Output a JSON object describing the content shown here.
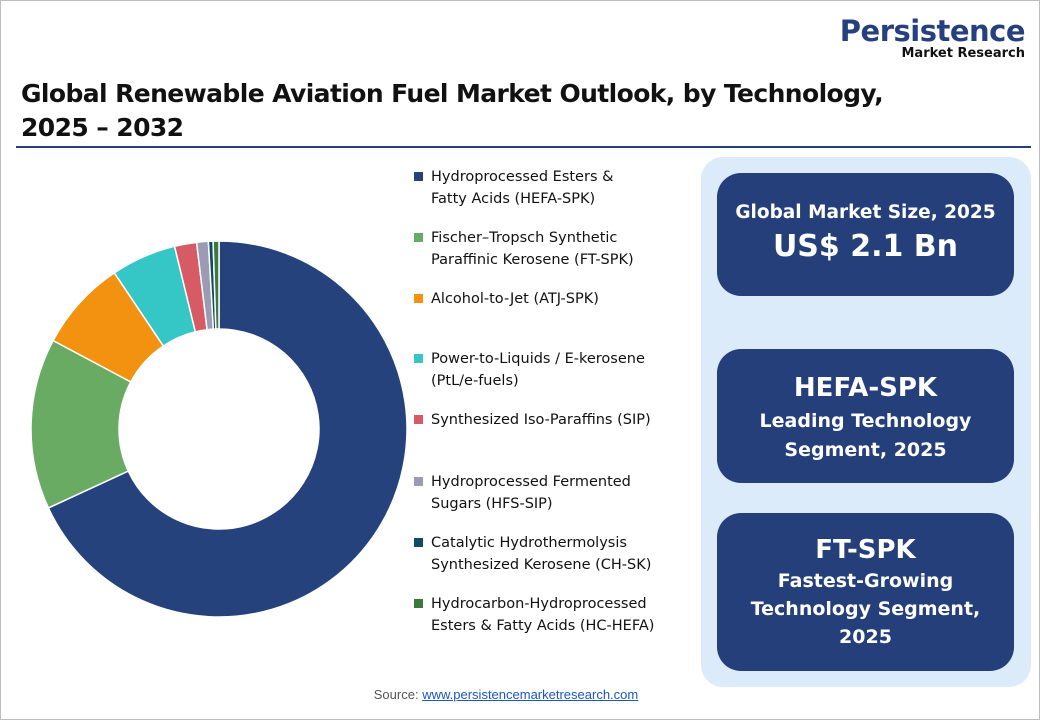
{
  "logo": {
    "line1": "Persistence",
    "line2": "Market Research"
  },
  "title": "Global Renewable Aviation Fuel Market Outlook, by Technology, 2025 – 2032",
  "title_line1": "Global Renewable Aviation Fuel Market Outlook, by Technology,",
  "title_line2": "2025 – 2032",
  "chart_data": {
    "type": "pie",
    "donut": true,
    "categories": [
      "Hydroprocessed Esters & Fatty Acids (HEFA-SPK)",
      "Fischer–Tropsch Synthetic Paraffinic Kerosene (FT-SPK)",
      "Alcohol-to-Jet (ATJ-SPK)",
      "Power-to-Liquids / E-kerosene (PtL/e-fuels)",
      "Synthesized Iso-Paraffins (SIP)",
      "Hydroprocessed Fermented Sugars (HFS-SIP)",
      "Catalytic Hydrothermolysis Synthesized Kerosene (CH-SK)",
      "Hydrocarbon-Hydroprocessed Esters & Fatty Acids (HC-HEFA)"
    ],
    "legend_lines": [
      [
        "Hydroprocessed Esters &",
        "Fatty Acids (HEFA-SPK)"
      ],
      [
        "Fischer–Tropsch Synthetic",
        "Paraffinic Kerosene (FT-SPK)"
      ],
      [
        "Alcohol-to-Jet (ATJ-SPK)"
      ],
      [
        "Power-to-Liquids / E-kerosene",
        "(PtL/e-fuels)"
      ],
      [
        "Synthesized Iso-Paraffins (SIP)"
      ],
      [
        "Hydroprocessed Fermented",
        "Sugars (HFS-SIP)"
      ],
      [
        "Catalytic Hydrothermolysis",
        "Synthesized Kerosene (CH-SK)"
      ],
      [
        "Hydrocarbon-Hydroprocessed",
        "Esters & Fatty Acids (HC-HEFA)"
      ]
    ],
    "values": [
      68.1,
      14.7,
      7.8,
      5.6,
      1.9,
      1.0,
      0.4,
      0.5
    ],
    "unit": "%",
    "colors": [
      "#25427d",
      "#6aab64",
      "#f39110",
      "#35c7c6",
      "#d65b64",
      "#9b9bb3",
      "#0f4c66",
      "#3c7a3c"
    ],
    "legend_position": "right"
  },
  "panel": {
    "box1": {
      "label": "Global Market Size, 2025",
      "value": "US$ 2.1 Bn"
    },
    "box2": {
      "value": "HEFA-SPK",
      "label_line1": "Leading Technology",
      "label_line2": "Segment, 2025"
    },
    "box3": {
      "value": "FT-SPK",
      "label_line1": "Fastest-Growing",
      "label_line2": "Technology Segment,",
      "label_line3": "2025"
    }
  },
  "source": {
    "label": "Source:",
    "link": "www.persistencemarketresearch.com"
  }
}
